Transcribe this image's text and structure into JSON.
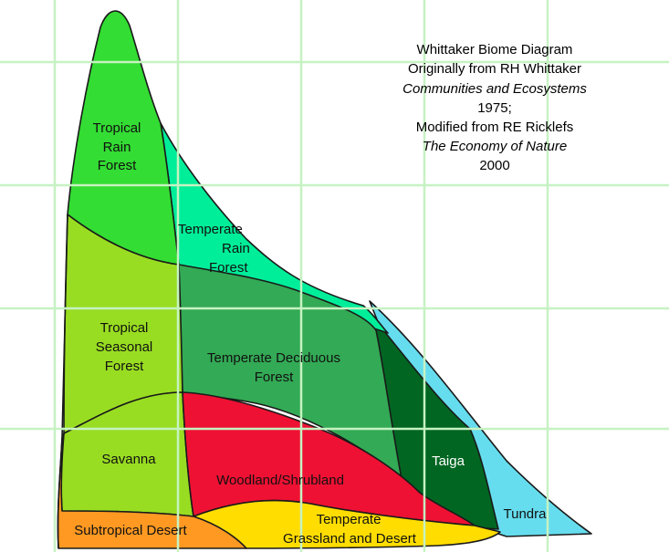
{
  "title_block": {
    "line1": "Whittaker Biome Diagram",
    "line2": "Originally from RH Whittaker",
    "line3": "Communities and Ecosystems",
    "line4": "1975;",
    "line5": "Modified from RE Ricklefs",
    "line6": "The Economy of Nature",
    "line7": "2000"
  },
  "biomes": {
    "tropical_rain_forest": {
      "line1": "Tropical",
      "line2": "Rain",
      "line3": "Forest",
      "color": "#33dd33"
    },
    "temperate_rain_forest": {
      "line1": "Temperate",
      "line2": "Rain",
      "line3": "Forest",
      "color": "#00ee99"
    },
    "tropical_seasonal_forest": {
      "line1": "Tropical",
      "line2": "Seasonal",
      "line3": "Forest",
      "color": "#99dd22"
    },
    "temperate_deciduous_forest": {
      "line1": "Temperate Deciduous",
      "line2": "Forest",
      "color": "#33aa55"
    },
    "savanna": {
      "line1": "Savanna",
      "color": "#99dd22"
    },
    "woodland_shrubland": {
      "line1": "Woodland/Shrubland",
      "color": "#ee1133"
    },
    "taiga": {
      "line1": "Taiga",
      "color": "#006622"
    },
    "tundra": {
      "line1": "Tundra",
      "color": "#66ddee"
    },
    "subtropical_desert": {
      "line1": "Subtropical Desert",
      "color": "#ff9922"
    },
    "temperate_grassland_desert": {
      "line1": "Temperate",
      "line2": "Grassland and Desert",
      "color": "#ffdd00"
    }
  },
  "colors": {
    "grid": "#c6f2c2",
    "outline": "#1a1a1a",
    "background": "#ffffff"
  }
}
